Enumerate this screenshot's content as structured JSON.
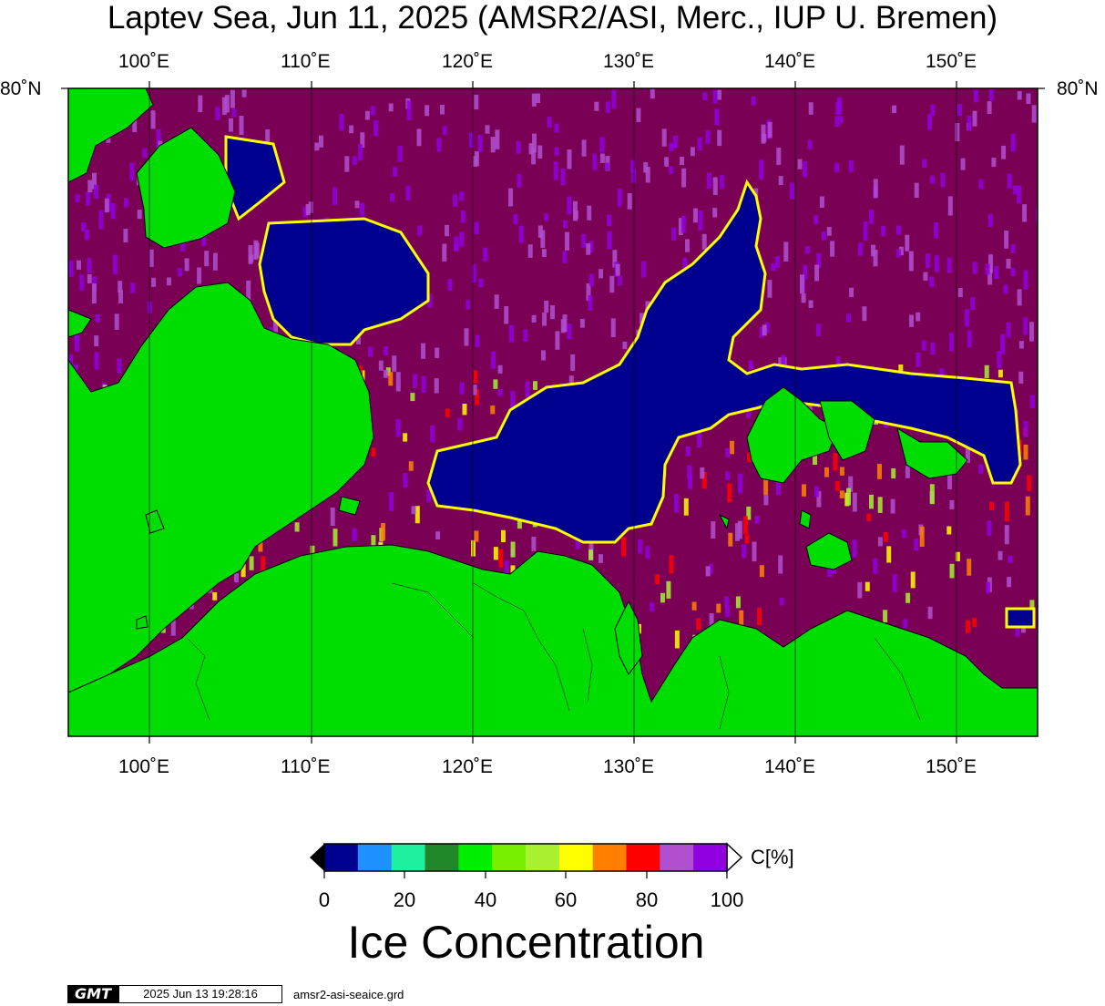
{
  "title": "Laptev Sea, Jun 11, 2025 (AMSR2/ASI, Merc., IUP U. Bremen)",
  "axes": {
    "lon_ticks": [
      "100˚E",
      "110˚E",
      "120˚E",
      "130˚E",
      "140˚E",
      "150˚E"
    ],
    "lat_label_left": "80˚N",
    "lat_label_right": "80˚N",
    "lon_range": [
      95,
      155
    ]
  },
  "colors": {
    "land": "#00dd00",
    "water_100": "#7a0055",
    "ice_0": "#00008f"
  },
  "colorbar": {
    "unit": "C[%]",
    "tick_labels": [
      "0",
      "20",
      "40",
      "60",
      "80",
      "100"
    ],
    "colors": [
      "#00008f",
      "#1e90ff",
      "#1ef0a0",
      "#208828",
      "#00ee00",
      "#78ee00",
      "#a8f030",
      "#ffff00",
      "#ff8000",
      "#ff0000",
      "#b050d0",
      "#9000e0"
    ],
    "title": "Ice Concentration"
  },
  "footer": {
    "logo": "GMT",
    "timestamp": "2025 Jun 13 19:28:16",
    "grid_file": "amsr2-asi-seaice.grd"
  }
}
